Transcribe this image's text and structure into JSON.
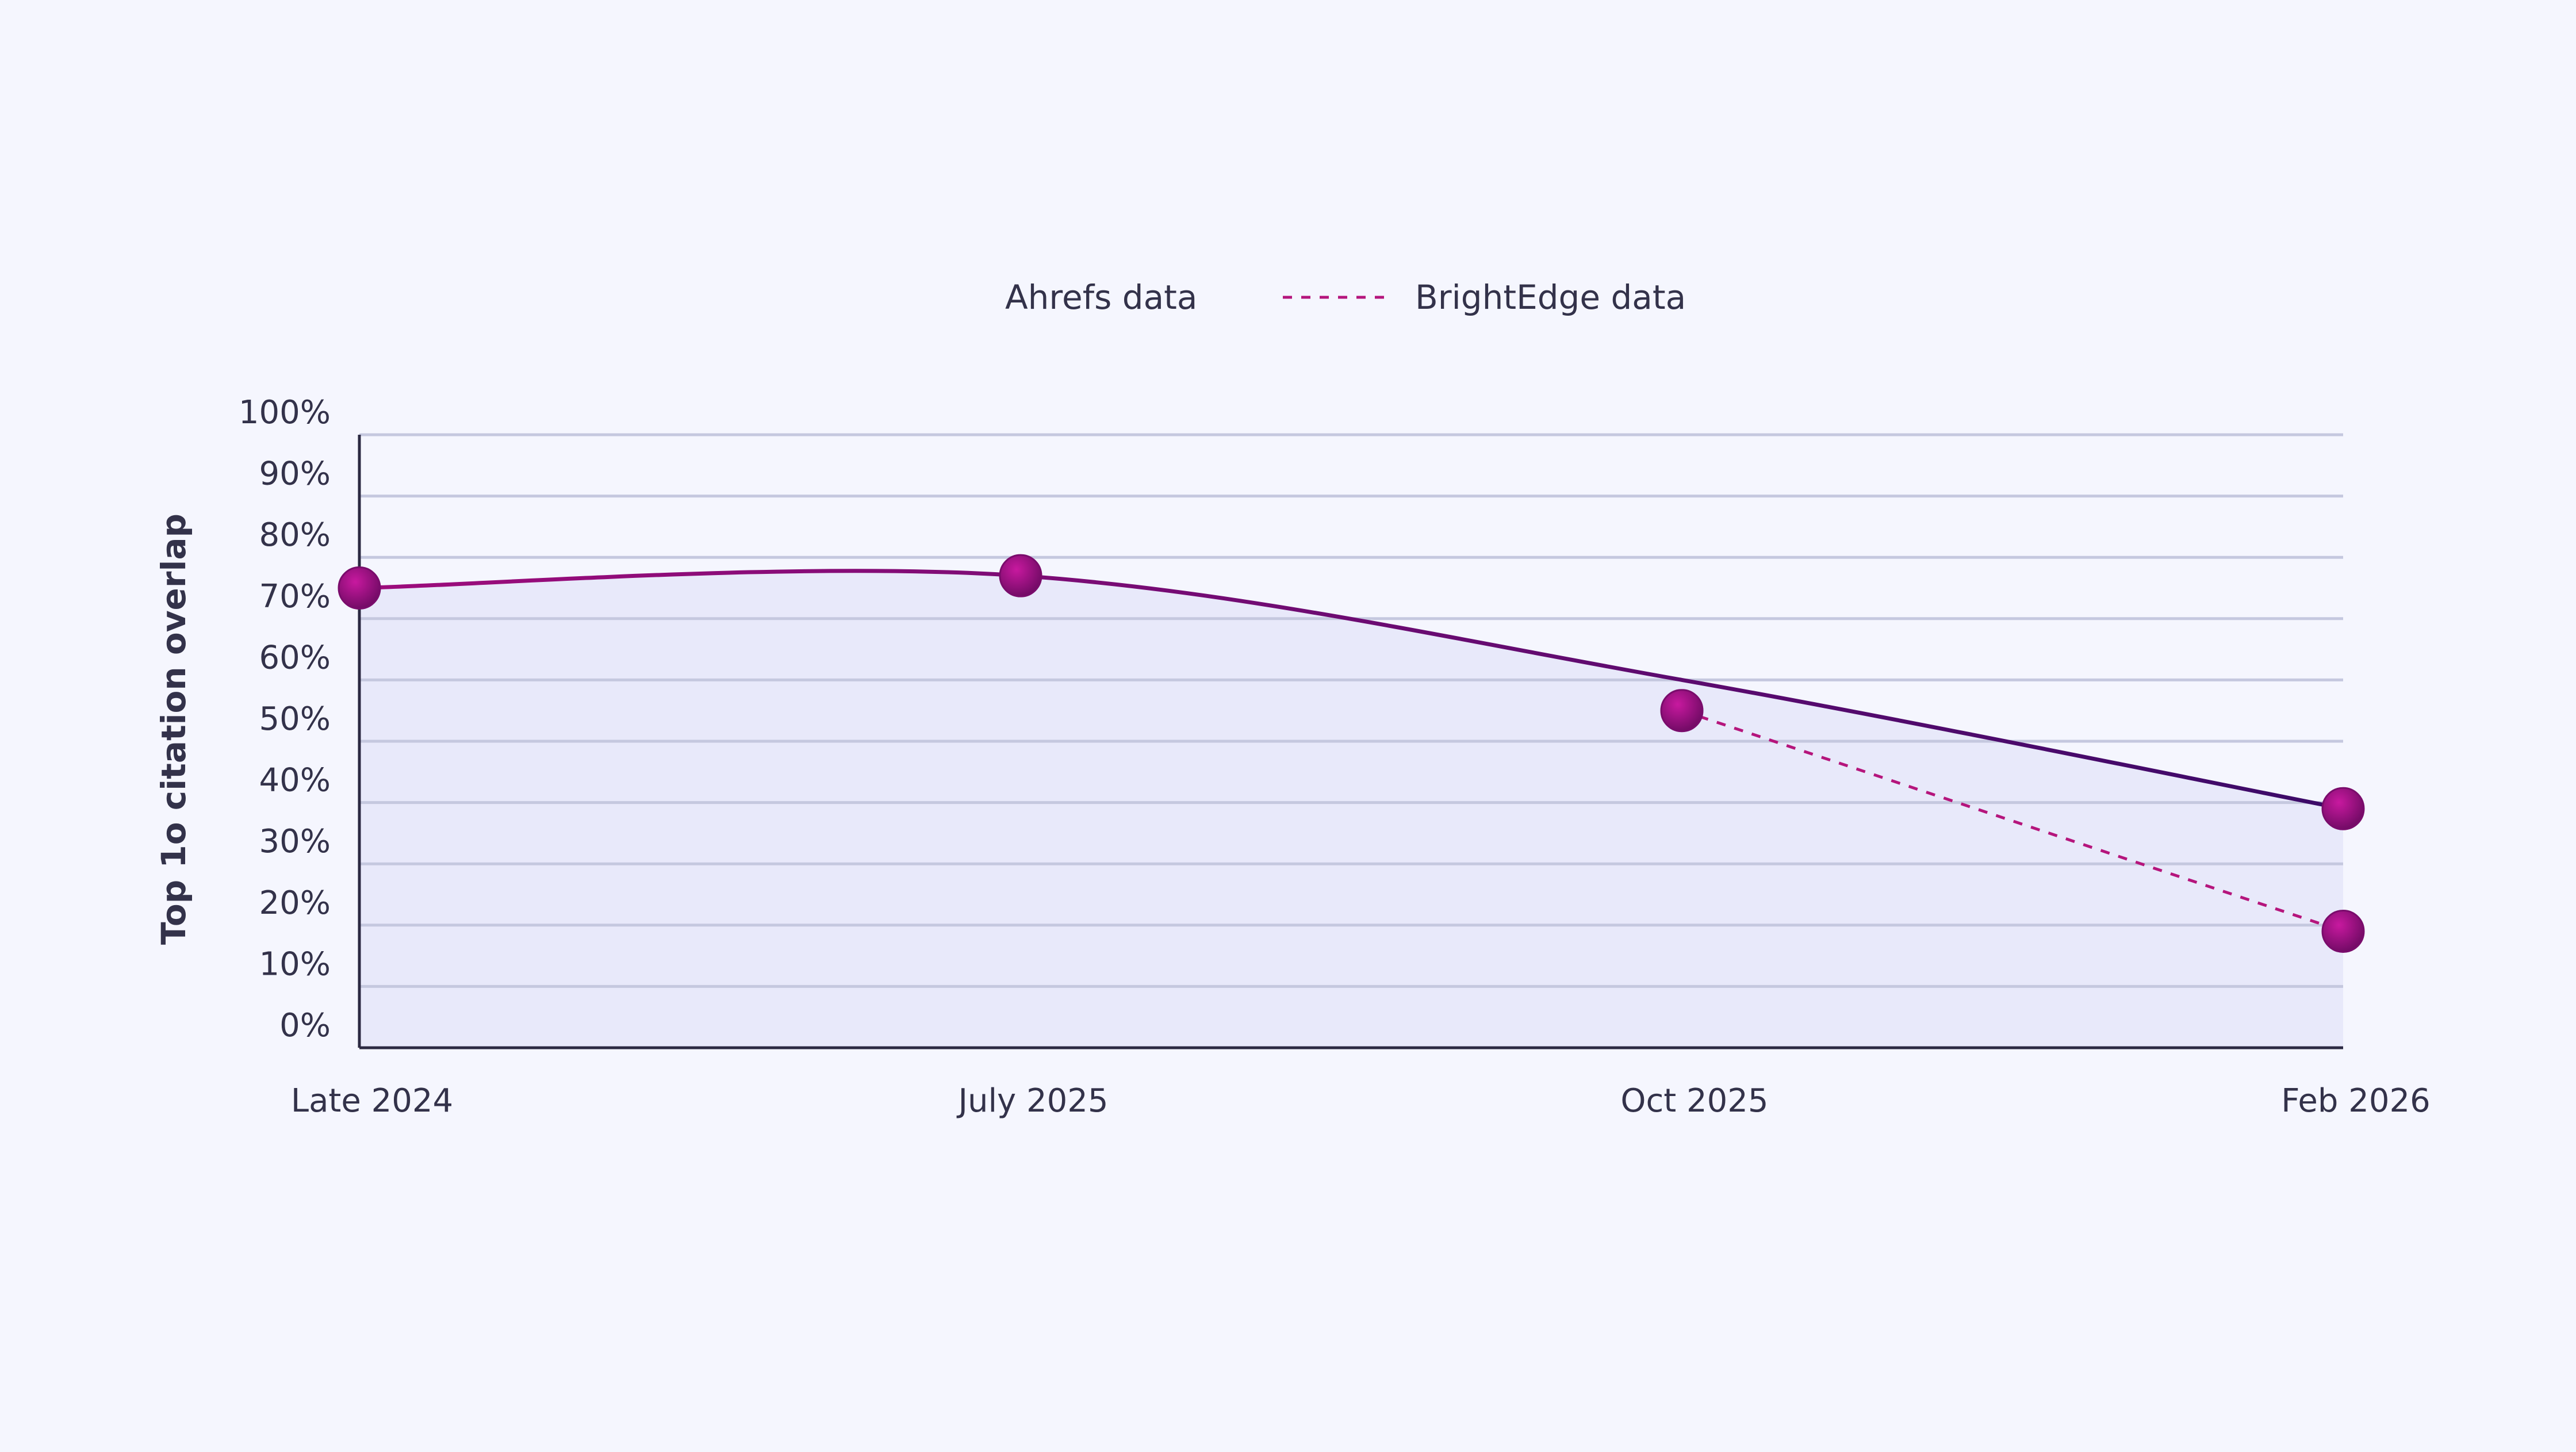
{
  "chart_data": {
    "type": "line",
    "title": "",
    "xlabel": "",
    "ylabel": "Top 1o citation overlap",
    "categories": [
      "Late 2024",
      "July 2025",
      "Oct 2025",
      "Feb 2026"
    ],
    "yticks": [
      "0%",
      "10%",
      "20%",
      "30%",
      "40%",
      "50%",
      "60%",
      "70%",
      "80%",
      "90%",
      "100%"
    ],
    "ylim": [
      0,
      100
    ],
    "grid": true,
    "legend_position": "top-center",
    "series": [
      {
        "name": "Ahrefs data",
        "style": "solid",
        "values": [
          75,
          77,
          null,
          39
        ],
        "curve_extra_points": [
          {
            "x": 2.0,
            "y": 60
          }
        ]
      },
      {
        "name": "BrightEdge data",
        "style": "dashed",
        "values": [
          null,
          null,
          55,
          19
        ]
      }
    ],
    "colors": {
      "background": "#f5f6fe",
      "plot_fill": "#e8e9fa",
      "grid": "#c5c8df",
      "axis": "#2b2942",
      "text": "#33324a",
      "line_start": "#9e0c7c",
      "line_end": "#3b0a68",
      "dashed": "#b5157c",
      "marker_light": "#c2189b",
      "marker_dark": "#6d0a62"
    }
  }
}
